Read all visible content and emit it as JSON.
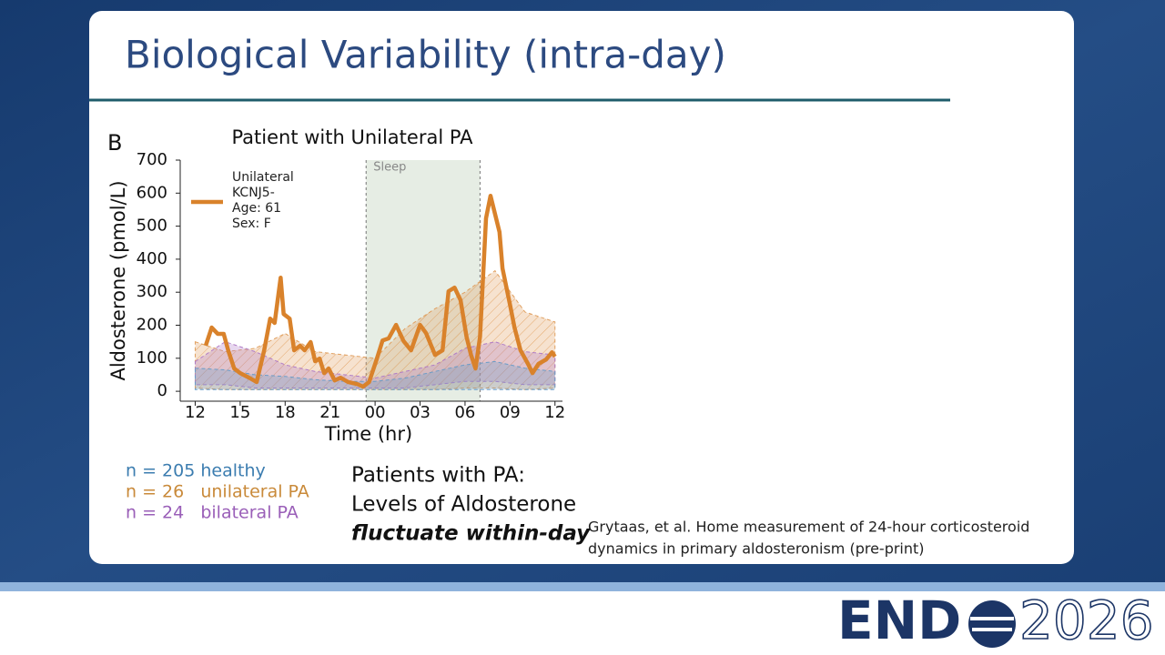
{
  "header": {
    "title": "Biological Variability (intra-day)"
  },
  "chart_data": {
    "type": "line",
    "panel": "B",
    "title": "Patient with Unilateral PA",
    "x_label": "Time (hr)",
    "y_label": "Aldosterone (pmol/L)",
    "xlim": [
      11,
      36.5
    ],
    "ylim": [
      -30,
      700
    ],
    "xticks": [
      12,
      15,
      18,
      21,
      {
        "value": 24,
        "label": "00"
      },
      {
        "value": 27,
        "label": "03"
      },
      {
        "value": 30,
        "label": "06"
      },
      {
        "value": 33,
        "label": "09"
      },
      {
        "value": 36,
        "label": "12"
      }
    ],
    "yticks": [
      0,
      100,
      200,
      300,
      400,
      500,
      600,
      700
    ],
    "sleep_label": "Sleep",
    "sleep_span": [
      23.4,
      31.0
    ],
    "x": [
      12.7,
      13.1,
      13.5,
      13.9,
      14.2,
      14.6,
      15.0,
      15.6,
      16.1,
      16.6,
      17.0,
      17.3,
      17.7,
      17.9,
      18.3,
      18.6,
      19.0,
      19.3,
      19.7,
      20.0,
      20.3,
      20.6,
      20.9,
      21.3,
      21.7,
      22.2,
      22.8,
      23.2,
      23.6,
      24.1,
      24.5,
      24.9,
      25.4,
      25.9,
      26.4,
      27.0,
      27.4,
      28.0,
      28.5,
      28.9,
      29.3,
      29.7,
      30.1,
      30.4,
      30.7,
      31.0,
      31.4,
      31.7,
      32.0,
      32.3,
      32.5,
      33.0,
      33.3,
      33.7,
      34.2,
      34.5,
      34.9,
      35.4,
      35.8,
      36.0
    ],
    "series": [
      {
        "name": "Unilateral",
        "details": [
          "KCNJ5-",
          "Age: 61",
          "Sex: F"
        ],
        "color": "#d9822b",
        "values": [
          138,
          193,
          174,
          174,
          124,
          69,
          55,
          41,
          28,
          124,
          220,
          207,
          344,
          234,
          220,
          124,
          138,
          124,
          149,
          91,
          99,
          55,
          69,
          33,
          41,
          28,
          22,
          14,
          28,
          96,
          154,
          160,
          201,
          152,
          124,
          201,
          176,
          110,
          124,
          303,
          314,
          276,
          165,
          110,
          69,
          165,
          524,
          592,
          537,
          482,
          372,
          262,
          193,
          124,
          83,
          55,
          83,
          96,
          118,
          105
        ]
      }
    ],
    "band_x": [
      12,
      14,
      16,
      18,
      20,
      22,
      24,
      26,
      28,
      30,
      32,
      34,
      36
    ],
    "bands": [
      {
        "name": "n = 26   unilateral PA",
        "color": "#e0a060",
        "upper": [
          150,
          120,
          130,
          175,
          120,
          110,
          100,
          190,
          250,
          300,
          365,
          240,
          210
        ],
        "lower": [
          10,
          5,
          5,
          5,
          5,
          5,
          5,
          5,
          5,
          10,
          10,
          5,
          10
        ]
      },
      {
        "name": "n = 24   bilateral PA",
        "color": "#b07cc6",
        "upper": [
          90,
          150,
          120,
          80,
          60,
          50,
          40,
          60,
          80,
          130,
          150,
          120,
          110
        ],
        "lower": [
          20,
          20,
          10,
          10,
          10,
          10,
          10,
          10,
          20,
          30,
          30,
          20,
          20
        ]
      },
      {
        "name": "n = 205 healthy",
        "color": "#6a9cc8",
        "upper": [
          70,
          65,
          50,
          45,
          35,
          30,
          30,
          40,
          60,
          80,
          90,
          70,
          60
        ],
        "lower": [
          5,
          5,
          5,
          5,
          5,
          5,
          5,
          5,
          5,
          5,
          5,
          5,
          5
        ]
      }
    ]
  },
  "note": {
    "lines": [
      "Patients with PA:",
      "Levels of Aldosterone"
    ],
    "emphasis": "fluctuate within-day"
  },
  "citation": [
    "Grytaas, et al. Home measurement of 24-hour corticosteroid",
    "dynamics in primary aldosteronism (pre-print)"
  ],
  "logo": {
    "left": "END",
    "right": "2026"
  }
}
